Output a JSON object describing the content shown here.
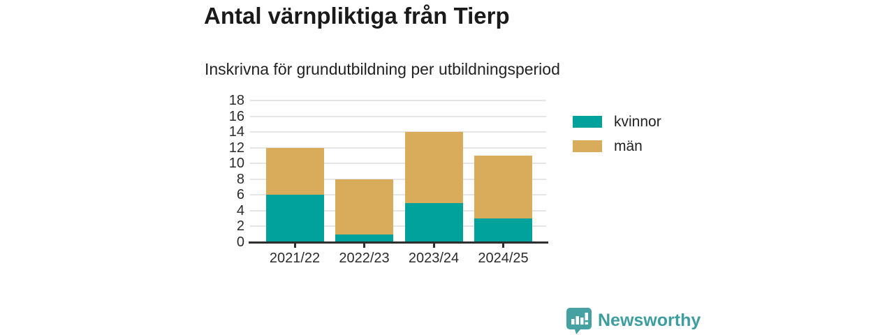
{
  "chart_data": {
    "type": "bar",
    "stacked": true,
    "title": "Antal värnpliktiga från Tierp",
    "subtitle": "Inskrivna för grundutbildning per utbildningsperiod",
    "categories": [
      "2021/22",
      "2022/23",
      "2023/24",
      "2024/25"
    ],
    "series": [
      {
        "name": "kvinnor",
        "color": "#00A29B",
        "values": [
          6,
          1,
          5,
          3
        ]
      },
      {
        "name": "män",
        "color": "#D9AC5C",
        "values": [
          6,
          7,
          9,
          8
        ]
      }
    ],
    "stack_totals": [
      12,
      8,
      14,
      11
    ],
    "ylim": [
      0,
      18
    ],
    "ytick_step": 2,
    "ytick_labels": [
      "0",
      "2",
      "4",
      "6",
      "8",
      "10",
      "12",
      "14",
      "16",
      "18"
    ],
    "grid": true,
    "legend_position": "right",
    "axis_color": "#2E2E2E",
    "grid_color": "#E5E5E5",
    "text_color": "#2B2B2B"
  },
  "footer": {
    "brand": "Newsworthy",
    "brand_color": "#3E9D9E",
    "logo_icon": "bar-chart-speech-bubble-icon"
  }
}
